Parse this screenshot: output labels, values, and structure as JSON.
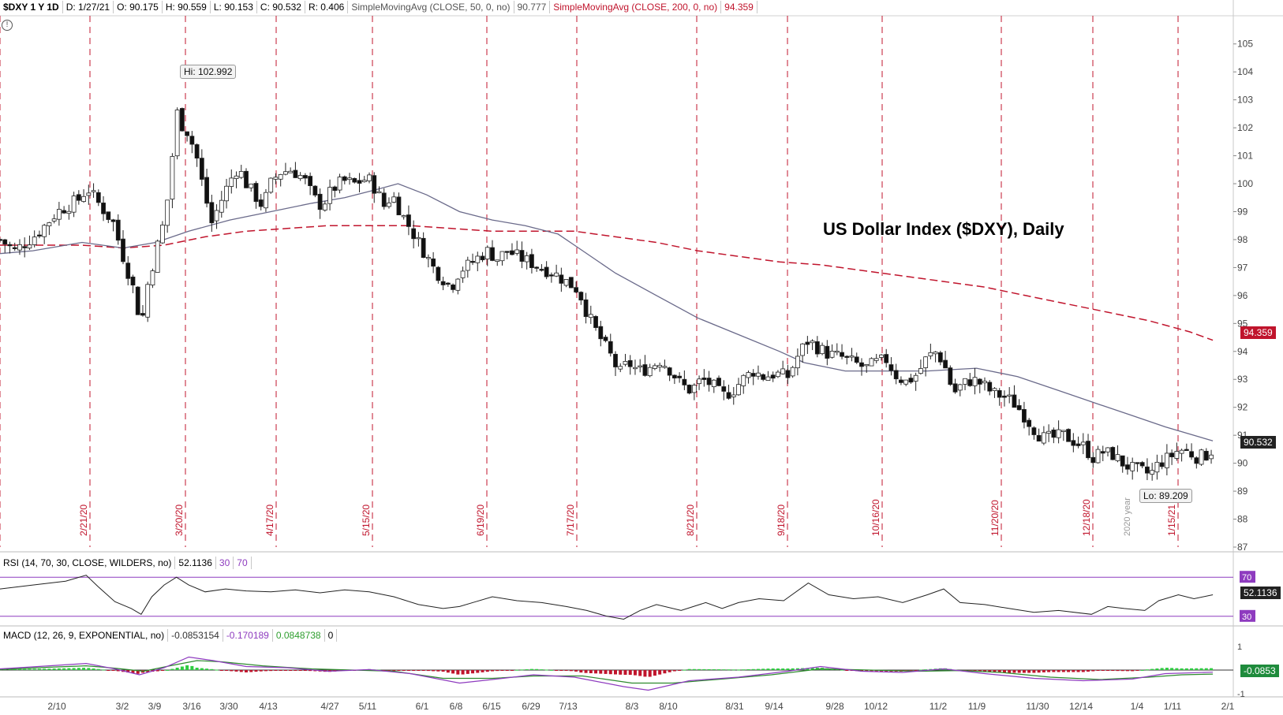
{
  "header": {
    "symbol": "$DXY 1 Y 1D",
    "date": "D: 1/27/21",
    "open": "O: 90.175",
    "high": "H: 90.559",
    "low": "L: 90.153",
    "close": "C: 90.532",
    "range": "R: 0.406",
    "sma50_label": "SimpleMovingAvg (CLOSE, 50, 0, no)",
    "sma50_value": "90.777",
    "sma200_label": "SimpleMovingAvg (CLOSE, 200, 0, no)",
    "sma200_value": "94.359"
  },
  "rsi_header": {
    "label": "RSI (14, 70, 30, CLOSE, WILDERS, no)",
    "value": "52.1136",
    "os": "30",
    "ob": "70"
  },
  "macd_header": {
    "label": "MACD (12, 26, 9, EXPONENTIAL, no)",
    "value": "-0.0853154",
    "avg": "-0.170189",
    "diff": "0.0848738",
    "zero": "0"
  },
  "annotations": {
    "hi": "Hi: 102.992",
    "lo": "Lo: 89.209",
    "year": "2020 year"
  },
  "price_tags": {
    "last": "90.532",
    "sma200": "94.359",
    "rsi": "52.1136",
    "macd": "-0.0853"
  },
  "colors": {
    "up": "#ffffff",
    "down": "#111111",
    "sma50": "#6a6a8a",
    "sma200": "#c0142c",
    "rsi": "#222222",
    "level": "#8e3bbf",
    "macd": "#8e3bbf",
    "signal": "#2e8b2e",
    "hist_up": "#2ecc40",
    "hist_down": "#c0142c",
    "event": "#c0142c"
  },
  "chart_data": {
    "type": "candlestick",
    "title": "US Dollar Index ($DXY), Daily",
    "ylim": [
      87,
      105.5
    ],
    "y_ticks": [
      87,
      88,
      89,
      90,
      91,
      92,
      93,
      94,
      95,
      96,
      97,
      98,
      99,
      100,
      101,
      102,
      103,
      104,
      105
    ],
    "x_ticks": [
      "2/10",
      "3/2",
      "3/9",
      "3/16",
      "3/30",
      "4/13",
      "4/27",
      "5/11",
      "6/1",
      "6/8",
      "6/15",
      "6/29",
      "7/13",
      "8/3",
      "8/10",
      "8/31",
      "9/14",
      "9/28",
      "10/12",
      "11/2",
      "11/9",
      "11/30",
      "12/14",
      "1/4",
      "1/11",
      "2/1"
    ],
    "event_dates": [
      "2/21/20",
      "3/20/20",
      "4/17/20",
      "5/15/20",
      "6/19/20",
      "7/17/20",
      "8/21/20",
      "9/18/20",
      "10/16/20",
      "11/20/20",
      "12/18/20",
      "1/15/21"
    ],
    "close_path": [
      [
        0,
        98.0
      ],
      [
        18,
        97.6
      ],
      [
        45,
        98.2
      ],
      [
        70,
        99.0
      ],
      [
        100,
        99.5
      ],
      [
        105,
        99.9
      ],
      [
        120,
        99.3
      ],
      [
        138,
        98.6
      ],
      [
        150,
        97.4
      ],
      [
        163,
        96.2
      ],
      [
        172,
        94.9
      ],
      [
        180,
        96.4
      ],
      [
        192,
        97.8
      ],
      [
        202,
        98.9
      ],
      [
        210,
        101.0
      ],
      [
        215,
        102.6
      ],
      [
        222,
        102.1
      ],
      [
        230,
        101.8
      ],
      [
        240,
        100.9
      ],
      [
        248,
        99.8
      ],
      [
        258,
        98.6
      ],
      [
        268,
        99.3
      ],
      [
        280,
        100.1
      ],
      [
        290,
        100.6
      ],
      [
        300,
        100.0
      ],
      [
        310,
        99.6
      ],
      [
        320,
        99.2
      ],
      [
        330,
        100.0
      ],
      [
        340,
        100.4
      ],
      [
        355,
        100.5
      ],
      [
        370,
        100.2
      ],
      [
        382,
        99.5
      ],
      [
        392,
        99.2
      ],
      [
        405,
        99.8
      ],
      [
        418,
        100.1
      ],
      [
        432,
        100.0
      ],
      [
        448,
        100.2
      ],
      [
        458,
        99.8
      ],
      [
        468,
        99.2
      ],
      [
        478,
        99.6
      ],
      [
        490,
        98.9
      ],
      [
        500,
        98.4
      ],
      [
        510,
        97.9
      ],
      [
        520,
        97.4
      ],
      [
        530,
        96.9
      ],
      [
        540,
        96.6
      ],
      [
        550,
        96.3
      ],
      [
        560,
        96.9
      ],
      [
        572,
        97.1
      ],
      [
        584,
        97.4
      ],
      [
        595,
        97.6
      ],
      [
        605,
        97.3
      ],
      [
        618,
        97.6
      ],
      [
        630,
        97.4
      ],
      [
        645,
        97.2
      ],
      [
        660,
        97.0
      ],
      [
        675,
        96.8
      ],
      [
        690,
        96.5
      ],
      [
        705,
        96.2
      ],
      [
        715,
        95.4
      ],
      [
        725,
        94.8
      ],
      [
        735,
        94.3
      ],
      [
        745,
        93.8
      ],
      [
        755,
        93.2
      ],
      [
        765,
        93.6
      ],
      [
        778,
        93.3
      ],
      [
        790,
        93.4
      ],
      [
        805,
        93.7
      ],
      [
        818,
        93.3
      ],
      [
        830,
        92.8
      ],
      [
        842,
        92.6
      ],
      [
        855,
        93.0
      ],
      [
        868,
        92.8
      ],
      [
        880,
        92.4
      ],
      [
        893,
        92.6
      ],
      [
        905,
        93.0
      ],
      [
        918,
        93.3
      ],
      [
        930,
        93.1
      ],
      [
        945,
        93.2
      ],
      [
        960,
        93.1
      ],
      [
        975,
        94.0
      ],
      [
        985,
        94.4
      ],
      [
        998,
        94.1
      ],
      [
        1010,
        93.9
      ],
      [
        1025,
        93.8
      ],
      [
        1040,
        93.6
      ],
      [
        1055,
        93.4
      ],
      [
        1068,
        93.6
      ],
      [
        1080,
        93.7
      ],
      [
        1093,
        93.1
      ],
      [
        1105,
        92.9
      ],
      [
        1118,
        93.2
      ],
      [
        1130,
        93.8
      ],
      [
        1142,
        94.0
      ],
      [
        1152,
        93.4
      ],
      [
        1162,
        92.5
      ],
      [
        1172,
        92.8
      ],
      [
        1185,
        93.0
      ],
      [
        1198,
        92.8
      ],
      [
        1210,
        92.5
      ],
      [
        1222,
        92.4
      ],
      [
        1234,
        92.2
      ],
      [
        1246,
        91.8
      ],
      [
        1258,
        91.3
      ],
      [
        1270,
        90.9
      ],
      [
        1283,
        90.9
      ],
      [
        1296,
        91.0
      ],
      [
        1308,
        90.8
      ],
      [
        1320,
        90.6
      ],
      [
        1332,
        90.2
      ],
      [
        1344,
        90.4
      ],
      [
        1356,
        90.3
      ],
      [
        1368,
        90.0
      ],
      [
        1380,
        89.8
      ],
      [
        1392,
        89.7
      ],
      [
        1402,
        89.6
      ],
      [
        1412,
        90.0
      ],
      [
        1425,
        90.2
      ],
      [
        1437,
        90.5
      ],
      [
        1448,
        90.4
      ],
      [
        1460,
        90.2
      ],
      [
        1470,
        90.3
      ],
      [
        1478,
        90.5
      ]
    ],
    "sma50_path": [
      [
        0,
        97.5
      ],
      [
        40,
        97.6
      ],
      [
        100,
        97.9
      ],
      [
        150,
        97.7
      ],
      [
        190,
        97.9
      ],
      [
        230,
        98.3
      ],
      [
        280,
        98.7
      ],
      [
        330,
        99.0
      ],
      [
        380,
        99.3
      ],
      [
        420,
        99.5
      ],
      [
        460,
        99.8
      ],
      [
        485,
        100.0
      ],
      [
        520,
        99.6
      ],
      [
        560,
        99.0
      ],
      [
        600,
        98.7
      ],
      [
        640,
        98.5
      ],
      [
        680,
        98.2
      ],
      [
        700,
        97.8
      ],
      [
        750,
        96.8
      ],
      [
        800,
        96.0
      ],
      [
        850,
        95.2
      ],
      [
        900,
        94.6
      ],
      [
        950,
        94.0
      ],
      [
        980,
        93.6
      ],
      [
        1030,
        93.3
      ],
      [
        1080,
        93.3
      ],
      [
        1130,
        93.3
      ],
      [
        1190,
        93.4
      ],
      [
        1240,
        93.1
      ],
      [
        1290,
        92.6
      ],
      [
        1340,
        92.1
      ],
      [
        1380,
        91.7
      ],
      [
        1420,
        91.3
      ],
      [
        1478,
        90.8
      ]
    ],
    "sma200_path": [
      [
        0,
        97.8
      ],
      [
        50,
        97.8
      ],
      [
        100,
        97.8
      ],
      [
        150,
        97.7
      ],
      [
        200,
        97.8
      ],
      [
        250,
        98.1
      ],
      [
        300,
        98.3
      ],
      [
        350,
        98.4
      ],
      [
        400,
        98.5
      ],
      [
        450,
        98.5
      ],
      [
        500,
        98.5
      ],
      [
        550,
        98.4
      ],
      [
        600,
        98.3
      ],
      [
        650,
        98.3
      ],
      [
        700,
        98.3
      ],
      [
        750,
        98.1
      ],
      [
        800,
        97.9
      ],
      [
        850,
        97.6
      ],
      [
        900,
        97.4
      ],
      [
        950,
        97.2
      ],
      [
        1000,
        97.1
      ],
      [
        1050,
        96.9
      ],
      [
        1100,
        96.7
      ],
      [
        1150,
        96.5
      ],
      [
        1200,
        96.3
      ],
      [
        1250,
        96.0
      ],
      [
        1300,
        95.7
      ],
      [
        1350,
        95.4
      ],
      [
        1400,
        95.1
      ],
      [
        1450,
        94.7
      ],
      [
        1478,
        94.4
      ]
    ],
    "rsi_range": [
      25,
      75
    ],
    "rsi_levels": [
      30,
      70
    ],
    "rsi_path": [
      [
        0,
        58
      ],
      [
        40,
        62
      ],
      [
        80,
        66
      ],
      [
        105,
        72
      ],
      [
        120,
        60
      ],
      [
        140,
        45
      ],
      [
        160,
        38
      ],
      [
        172,
        32
      ],
      [
        185,
        50
      ],
      [
        200,
        62
      ],
      [
        215,
        70
      ],
      [
        230,
        62
      ],
      [
        250,
        55
      ],
      [
        275,
        58
      ],
      [
        300,
        56
      ],
      [
        330,
        55
      ],
      [
        360,
        57
      ],
      [
        390,
        54
      ],
      [
        420,
        57
      ],
      [
        450,
        55
      ],
      [
        480,
        50
      ],
      [
        510,
        42
      ],
      [
        540,
        38
      ],
      [
        560,
        40
      ],
      [
        580,
        45
      ],
      [
        600,
        50
      ],
      [
        630,
        46
      ],
      [
        660,
        44
      ],
      [
        690,
        40
      ],
      [
        715,
        36
      ],
      [
        740,
        30
      ],
      [
        760,
        27
      ],
      [
        780,
        36
      ],
      [
        800,
        42
      ],
      [
        830,
        36
      ],
      [
        860,
        44
      ],
      [
        880,
        38
      ],
      [
        900,
        44
      ],
      [
        925,
        48
      ],
      [
        955,
        46
      ],
      [
        985,
        64
      ],
      [
        1010,
        52
      ],
      [
        1040,
        48
      ],
      [
        1070,
        50
      ],
      [
        1100,
        44
      ],
      [
        1130,
        52
      ],
      [
        1150,
        58
      ],
      [
        1170,
        44
      ],
      [
        1200,
        42
      ],
      [
        1230,
        38
      ],
      [
        1260,
        34
      ],
      [
        1290,
        36
      ],
      [
        1330,
        32
      ],
      [
        1350,
        40
      ],
      [
        1370,
        38
      ],
      [
        1395,
        36
      ],
      [
        1412,
        46
      ],
      [
        1436,
        52
      ],
      [
        1455,
        48
      ],
      [
        1478,
        52
      ]
    ],
    "macd_range": [
      -1,
      1
    ],
    "macd_line": [
      [
        0,
        0.05
      ],
      [
        60,
        0.18
      ],
      [
        105,
        0.28
      ],
      [
        140,
        0.05
      ],
      [
        170,
        -0.2
      ],
      [
        200,
        0.1
      ],
      [
        230,
        0.55
      ],
      [
        260,
        0.4
      ],
      [
        300,
        0.15
      ],
      [
        350,
        0.1
      ],
      [
        400,
        -0.05
      ],
      [
        450,
        0.02
      ],
      [
        500,
        -0.15
      ],
      [
        560,
        -0.55
      ],
      [
        600,
        -0.4
      ],
      [
        650,
        -0.2
      ],
      [
        700,
        -0.3
      ],
      [
        760,
        -0.7
      ],
      [
        790,
        -0.85
      ],
      [
        840,
        -0.45
      ],
      [
        900,
        -0.3
      ],
      [
        960,
        -0.05
      ],
      [
        1000,
        0.15
      ],
      [
        1050,
        -0.05
      ],
      [
        1100,
        -0.1
      ],
      [
        1150,
        0.05
      ],
      [
        1200,
        -0.15
      ],
      [
        1260,
        -0.35
      ],
      [
        1320,
        -0.45
      ],
      [
        1380,
        -0.38
      ],
      [
        1420,
        -0.15
      ],
      [
        1478,
        -0.09
      ]
    ],
    "signal_line": [
      [
        0,
        0.02
      ],
      [
        60,
        0.12
      ],
      [
        105,
        0.18
      ],
      [
        140,
        0.08
      ],
      [
        175,
        -0.05
      ],
      [
        210,
        0.2
      ],
      [
        240,
        0.4
      ],
      [
        270,
        0.35
      ],
      [
        320,
        0.18
      ],
      [
        380,
        0.05
      ],
      [
        430,
        0.0
      ],
      [
        480,
        -0.05
      ],
      [
        540,
        -0.35
      ],
      [
        600,
        -0.35
      ],
      [
        650,
        -0.25
      ],
      [
        710,
        -0.25
      ],
      [
        770,
        -0.55
      ],
      [
        820,
        -0.55
      ],
      [
        880,
        -0.38
      ],
      [
        940,
        -0.2
      ],
      [
        1000,
        0.05
      ],
      [
        1060,
        0.0
      ],
      [
        1120,
        -0.05
      ],
      [
        1170,
        -0.02
      ],
      [
        1220,
        -0.1
      ],
      [
        1280,
        -0.3
      ],
      [
        1340,
        -0.4
      ],
      [
        1400,
        -0.3
      ],
      [
        1440,
        -0.2
      ],
      [
        1478,
        -0.17
      ]
    ]
  }
}
